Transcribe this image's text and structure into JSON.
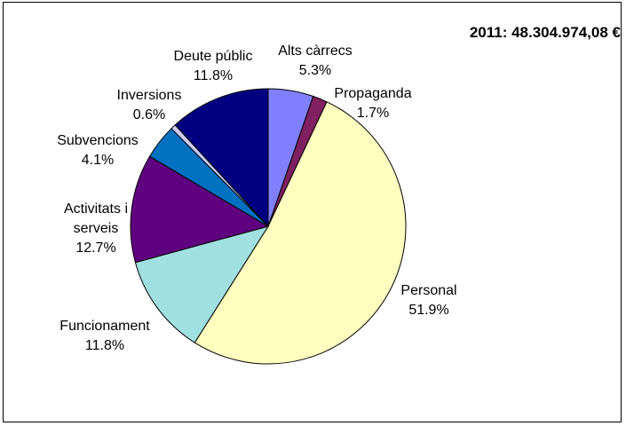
{
  "chart_data": {
    "type": "pie",
    "title": "2011: 48.304.974,08 €",
    "slices": [
      {
        "label": "Alts càrrecs",
        "value": 5.3,
        "display": "5.3%",
        "color": "#8080ff"
      },
      {
        "label": "Propaganda",
        "value": 1.7,
        "display": "1.7%",
        "color": "#802060"
      },
      {
        "label": "Personal",
        "value": 51.9,
        "display": "51.9%",
        "color": "#ffffc0"
      },
      {
        "label": "Funcionament",
        "value": 11.8,
        "display": "11.8%",
        "color": "#a0e0e0"
      },
      {
        "label": "Activitats i serveis",
        "label_lines": [
          "Activitats i",
          "serveis"
        ],
        "value": 12.7,
        "display": "12.7%",
        "color": "#600080"
      },
      {
        "label": "Subvencions",
        "value": 4.1,
        "display": "4.1%",
        "color": "#0070c0"
      },
      {
        "label": "Inversions",
        "value": 0.6,
        "display": "0.6%",
        "color": "#ccccff"
      },
      {
        "label": "Deute públic",
        "value": 11.8,
        "display": "11.8%",
        "color": "#000080"
      }
    ]
  }
}
